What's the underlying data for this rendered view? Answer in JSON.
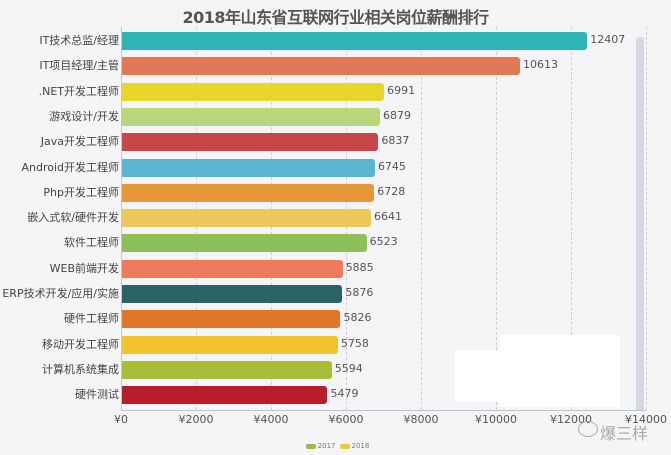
{
  "chart_data": {
    "type": "bar",
    "orientation": "horizontal",
    "title": "2018年山东省互联网行业相关岗位薪酬排行",
    "xlabel": "",
    "ylabel": "",
    "xlim": [
      0,
      14000
    ],
    "grid": true,
    "categories": [
      "IT技术总监/经理",
      "IT项目经理/主管",
      ".NET开发工程师",
      "游戏设计/开发",
      "Java开发工程师",
      "Android开发工程师",
      "Php开发工程师",
      "嵌入式软/硬件开发",
      "软件工程师",
      "WEB前端开发",
      "ERP技术开发/应用/实施",
      "硬件工程师",
      "移动开发工程师",
      "计算机系统集成",
      "硬件测试"
    ],
    "values": [
      12407,
      10613,
      6991,
      6879,
      6837,
      6745,
      6728,
      6641,
      6523,
      5885,
      5876,
      5826,
      5758,
      5594,
      5479
    ],
    "colors": [
      "#2fb4b4",
      "#e07a55",
      "#e8d62a",
      "#b9d67a",
      "#c8464a",
      "#5ab4d2",
      "#e8963a",
      "#ecc95a",
      "#8fbf5a",
      "#ef7a5e",
      "#2a6468",
      "#dd7628",
      "#f0c42a",
      "#a9bd3a",
      "#b81d2a"
    ],
    "x_ticks": [
      "¥0",
      "¥2000",
      "¥4000",
      "¥6000",
      "¥8000",
      "¥10000",
      "¥12000",
      "¥14000"
    ],
    "x_tick_values": [
      0,
      2000,
      4000,
      6000,
      8000,
      10000,
      12000,
      14000
    ],
    "legend": [
      {
        "name": "2017",
        "color": "#9cbb4a"
      },
      {
        "name": "2018",
        "color": "#eec840"
      }
    ],
    "legend_position": "bottom"
  },
  "watermark": "爆三样"
}
